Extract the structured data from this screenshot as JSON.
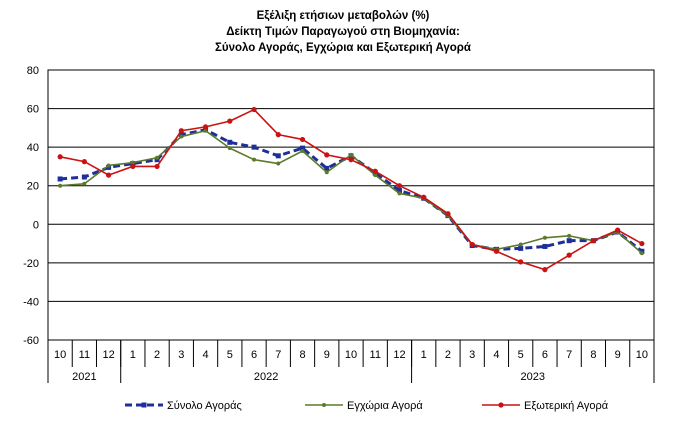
{
  "title": {
    "line1": "Εξέλιξη ετήσιων μεταβολών (%)",
    "line2": "Δείκτη Τιμών Παραγωγού στη Βιομηχανία:",
    "line3": "Σύνολο Αγοράς, Εγχώρια και Εξωτερική Αγορά"
  },
  "chart_data": {
    "type": "line",
    "title": "Εξέλιξη ετήσιων μεταβολών (%) Δείκτη Τιμών Παραγωγού στη Βιομηχανία: Σύνολο Αγοράς, Εγχώρια και Εξωτερική Αγορά",
    "xlabel": "",
    "ylabel": "",
    "ylim": [
      -60,
      80
    ],
    "yticks": [
      80,
      60,
      40,
      20,
      0,
      -20,
      -40,
      -60
    ],
    "grid": true,
    "legend_position": "bottom",
    "categories": [
      "10",
      "11",
      "12",
      "1",
      "2",
      "3",
      "4",
      "5",
      "6",
      "7",
      "8",
      "9",
      "10",
      "11",
      "12",
      "1",
      "2",
      "3",
      "4",
      "5",
      "6",
      "7",
      "8",
      "9",
      "10"
    ],
    "years": [
      {
        "label": "2021",
        "start": 0,
        "end": 2
      },
      {
        "label": "2022",
        "start": 3,
        "end": 14
      },
      {
        "label": "2023",
        "start": 15,
        "end": 24
      }
    ],
    "series": [
      {
        "name": "Σύνολο Αγοράς",
        "color": "#1f2f99",
        "style": "dashed",
        "values": [
          23.5,
          24.5,
          29.5,
          31.5,
          33.5,
          46.5,
          49.0,
          42.5,
          40.0,
          35.5,
          39.5,
          29.0,
          35.5,
          26.5,
          17.5,
          13.5,
          4.5,
          -11.0,
          -13.0,
          -12.5,
          -11.5,
          -8.5,
          -8.5,
          -4.0,
          -14.0
        ]
      },
      {
        "name": "Εγχώρια Αγορά",
        "color": "#5a7a2c",
        "style": "solid",
        "values": [
          20.0,
          21.0,
          30.5,
          32.0,
          34.5,
          45.5,
          48.5,
          39.5,
          33.5,
          31.5,
          38.0,
          27.0,
          36.0,
          25.5,
          16.0,
          13.5,
          4.5,
          -10.5,
          -13.0,
          -10.5,
          -7.0,
          -6.0,
          -8.5,
          -4.0,
          -15.0
        ]
      },
      {
        "name": "Εξωτερική Αγορά",
        "color": "#cc1111",
        "style": "solid",
        "values": [
          35.0,
          32.5,
          25.5,
          30.0,
          30.0,
          48.5,
          50.5,
          53.5,
          59.5,
          46.5,
          44.0,
          36.0,
          33.5,
          27.5,
          20.0,
          14.0,
          5.5,
          -10.5,
          -14.0,
          -19.5,
          -23.5,
          -16.0,
          -8.5,
          -3.0,
          -10.0
        ]
      }
    ]
  }
}
